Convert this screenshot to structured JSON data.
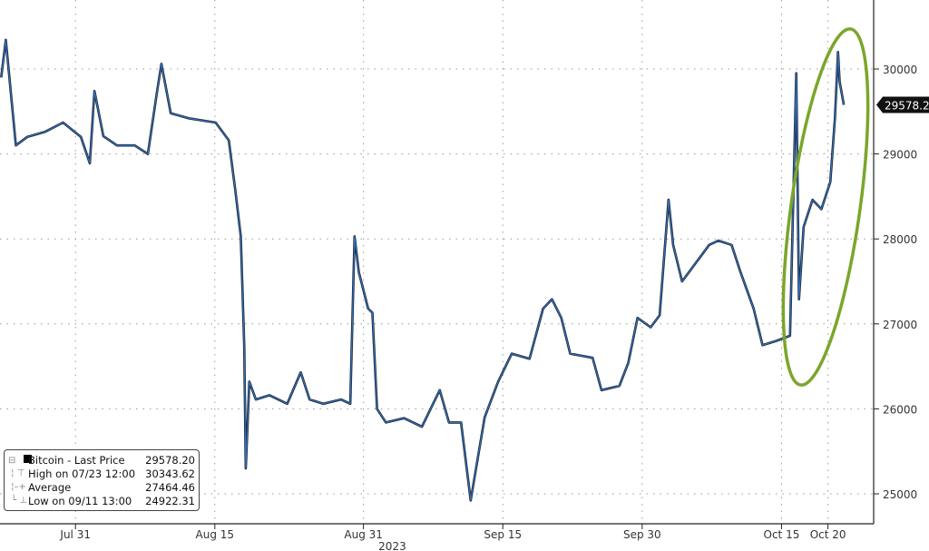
{
  "chart_data": {
    "type": "line",
    "title": "",
    "xlabel": "2023",
    "ylabel": "",
    "x_ticks": [
      {
        "label": "Jul 31",
        "date": "2023-07-31"
      },
      {
        "label": "Aug 15",
        "date": "2023-08-15"
      },
      {
        "label": "Aug 31",
        "date": "2023-08-31"
      },
      {
        "label": "Sep 15",
        "date": "2023-09-15"
      },
      {
        "label": "Sep 30",
        "date": "2023-09-30"
      },
      {
        "label": "Oct 15",
        "date": "2023-10-15"
      },
      {
        "label": "Oct 20",
        "date": "2023-10-20"
      }
    ],
    "y_ticks": [
      25000,
      26000,
      27000,
      28000,
      29000,
      30000
    ],
    "ylim": [
      24650,
      30800
    ],
    "xlim": [
      "2023-07-22 21:00",
      "2023-10-24 22:00"
    ],
    "grid": true,
    "y_axis_side": "right",
    "last_price_label": "29578.20",
    "colors": {
      "line": "#1a1a1a",
      "close": "#2f6fbf",
      "annotation": "#7aa62a",
      "grid": "#999999"
    },
    "annotation": "green ellipse around mid-October rally",
    "legend": {
      "placement": "bottom-left",
      "entries": [
        {
          "label": "Bitcoin - Last Price",
          "value": "29578.20",
          "icon": "black-square"
        },
        {
          "label": "High on 07/23 12:00",
          "value": "30343.62",
          "icon": "high-marker"
        },
        {
          "label": "Average",
          "value": "27464.46",
          "icon": "average-marker"
        },
        {
          "label": "Low on 09/11 13:00",
          "value": "24922.31",
          "icon": "low-marker"
        }
      ]
    },
    "series": [
      {
        "name": "Bitcoin - Last Price",
        "points": [
          [
            "2023-07-23 00:00",
            29900
          ],
          [
            "2023-07-23 12:00",
            30343
          ],
          [
            "2023-07-24 14:00",
            29100
          ],
          [
            "2023-07-25 19:00",
            29200
          ],
          [
            "2023-07-27 17:00",
            29260
          ],
          [
            "2023-07-29 16:00",
            29370
          ],
          [
            "2023-07-31 14:00",
            29200
          ],
          [
            "2023-08-01 13:00",
            28890
          ],
          [
            "2023-08-02 01:00",
            29740
          ],
          [
            "2023-08-03 00:00",
            29210
          ],
          [
            "2023-08-04 11:00",
            29100
          ],
          [
            "2023-08-06 09:00",
            29100
          ],
          [
            "2023-08-07 19:00",
            29000
          ],
          [
            "2023-08-08 19:00",
            29740
          ],
          [
            "2023-08-09 06:00",
            30060
          ],
          [
            "2023-08-10 06:00",
            29480
          ],
          [
            "2023-08-12 04:00",
            29420
          ],
          [
            "2023-08-15 02:00",
            29370
          ],
          [
            "2023-08-16 12:00",
            29160
          ],
          [
            "2023-08-17 05:00",
            28570
          ],
          [
            "2023-08-17 19:00",
            28030
          ],
          [
            "2023-08-18 04:00",
            26750
          ],
          [
            "2023-08-18 08:00",
            25300
          ],
          [
            "2023-08-18 17:00",
            26320
          ],
          [
            "2023-08-19 10:00",
            26110
          ],
          [
            "2023-08-20 21:00",
            26160
          ],
          [
            "2023-08-22 19:00",
            26060
          ],
          [
            "2023-08-24 06:00",
            26430
          ],
          [
            "2023-08-25 05:00",
            26110
          ],
          [
            "2023-08-26 16:00",
            26060
          ],
          [
            "2023-08-28 14:00",
            26110
          ],
          [
            "2023-08-29 14:00",
            26060
          ],
          [
            "2023-08-30 01:00",
            28030
          ],
          [
            "2023-08-30 12:00",
            27610
          ],
          [
            "2023-08-31 12:00",
            27180
          ],
          [
            "2023-08-31 23:00",
            27130
          ],
          [
            "2023-09-01 11:00",
            26000
          ],
          [
            "2023-09-02 10:00",
            25840
          ],
          [
            "2023-09-04 09:00",
            25890
          ],
          [
            "2023-09-06 07:00",
            25790
          ],
          [
            "2023-09-08 05:00",
            26220
          ],
          [
            "2023-09-09 05:00",
            25840
          ],
          [
            "2023-09-10 12:00",
            25840
          ],
          [
            "2023-09-11 13:00",
            24922
          ],
          [
            "2023-09-13 01:00",
            25900
          ],
          [
            "2023-09-14 12:00",
            26320
          ],
          [
            "2023-09-15 23:00",
            26650
          ],
          [
            "2023-09-17 21:00",
            26590
          ],
          [
            "2023-09-19 08:00",
            27180
          ],
          [
            "2023-09-20 07:00",
            27290
          ],
          [
            "2023-09-21 07:00",
            27070
          ],
          [
            "2023-09-22 06:00",
            26650
          ],
          [
            "2023-09-24 16:00",
            26600
          ],
          [
            "2023-09-25 15:00",
            26220
          ],
          [
            "2023-09-27 13:00",
            26270
          ],
          [
            "2023-09-28 12:00",
            26540
          ],
          [
            "2023-09-29 12:00",
            27070
          ],
          [
            "2023-09-30 22:00",
            26960
          ],
          [
            "2023-10-01 21:00",
            27100
          ],
          [
            "2023-10-02 20:00",
            28460
          ],
          [
            "2023-10-03 08:00",
            27930
          ],
          [
            "2023-10-04 07:00",
            27500
          ],
          [
            "2023-10-05 19:00",
            27720
          ],
          [
            "2023-10-07 05:00",
            27930
          ],
          [
            "2023-10-08 05:00",
            27980
          ],
          [
            "2023-10-09 15:00",
            27930
          ],
          [
            "2023-10-10 14:00",
            27610
          ],
          [
            "2023-10-12 00:00",
            27180
          ],
          [
            "2023-10-12 23:00",
            26750
          ],
          [
            "2023-10-14 11:00",
            26800
          ],
          [
            "2023-10-15 22:00",
            26860
          ],
          [
            "2023-10-16 14:00",
            29950
          ],
          [
            "2023-10-16 21:00",
            27290
          ],
          [
            "2023-10-17 09:00",
            28140
          ],
          [
            "2023-10-18 08:00",
            28460
          ],
          [
            "2023-10-19 07:00",
            28350
          ],
          [
            "2023-10-20 06:00",
            28670
          ],
          [
            "2023-10-20 18:00",
            29420
          ],
          [
            "2023-10-21 02:00",
            30200
          ],
          [
            "2023-10-21 06:00",
            29850
          ],
          [
            "2023-10-21 17:00",
            29578
          ]
        ]
      }
    ]
  }
}
